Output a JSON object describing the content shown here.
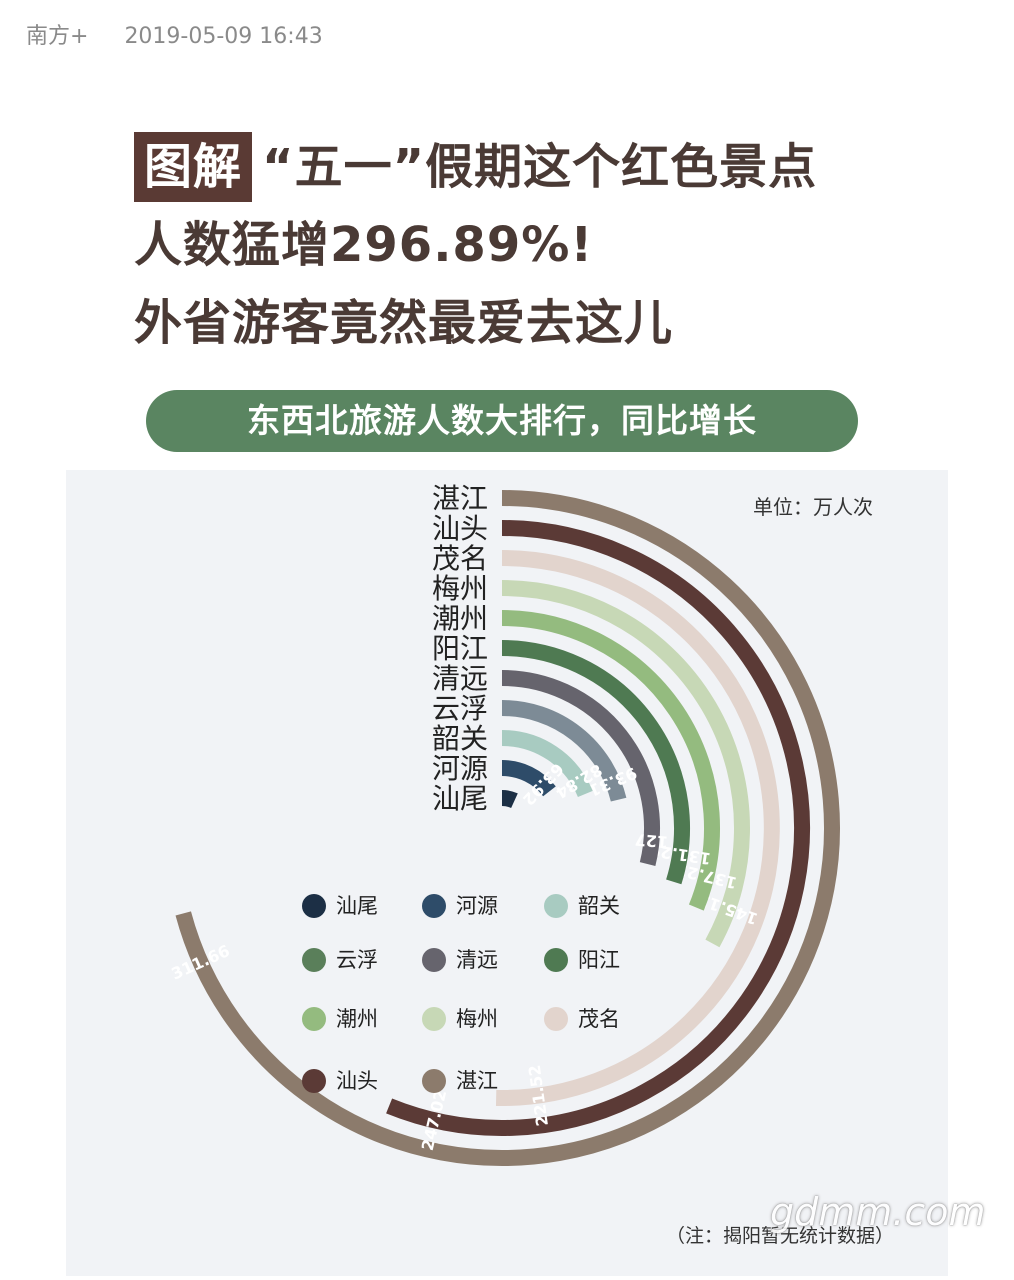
{
  "meta": {
    "source": "南方+",
    "time": "2019-05-09 16:43"
  },
  "headline": {
    "tag": "图解",
    "line1": "“五一”假期这个红色景点",
    "line2": "人数猛增296.89%!",
    "line3": "外省游客竟然最爱去这儿"
  },
  "banner": "东西北旅游人数大排行，同比增长",
  "credit": "gdmm.com",
  "chart_data": {
    "type": "radial-bar",
    "unit": "单位：万人次",
    "note": "（注：揭阳暂无统计数据）",
    "series": [
      {
        "name": "湛江",
        "value": 311.66,
        "label": "311.66",
        "color": "#8c7b6c"
      },
      {
        "name": "汕头",
        "value": 247.02,
        "label": "247.02",
        "color": "#5b3a36"
      },
      {
        "name": "茂名",
        "value": 221.52,
        "label": "221.52",
        "color": "#e2d4cd"
      },
      {
        "name": "梅州",
        "value": 145.13,
        "label": "145.13",
        "color": "#c7d8b6"
      },
      {
        "name": "潮州",
        "value": 137.21,
        "label": "137.21",
        "color": "#94bb7f"
      },
      {
        "name": "阳江",
        "value": 131.29,
        "label": "131.29",
        "color": "#4f7a52"
      },
      {
        "name": "清远",
        "value": 127,
        "label": "127",
        "color": "#66646d"
      },
      {
        "name": "云浮",
        "value": 93.31,
        "label": "93.31",
        "color": "#7d8b96"
      },
      {
        "name": "韶关",
        "value": 82.84,
        "label": "82.84",
        "color": "#a8cbc1"
      },
      {
        "name": "河源",
        "value": 63.92,
        "label": "63.92",
        "color": "#2e4c69"
      },
      {
        "name": "汕尾",
        "value": 30,
        "label": "",
        "color": "#1c2f45"
      }
    ],
    "legend": [
      "汕尾",
      "河源",
      "韶关",
      "云浮",
      "清远",
      "阳江",
      "潮州",
      "梅州",
      "茂名",
      "汕头",
      "湛江"
    ],
    "legend_colors": {
      "汕尾": "#1c2f45",
      "河源": "#2e4c69",
      "韶关": "#a8cbc1",
      "云浮": "#5a7f5a",
      "清远": "#66646d",
      "阳江": "#4f7a52",
      "潮州": "#94bb7f",
      "梅州": "#c7d8b6",
      "茂名": "#e2d4cd",
      "汕头": "#5b3a36",
      "湛江": "#8c7b6c"
    }
  }
}
